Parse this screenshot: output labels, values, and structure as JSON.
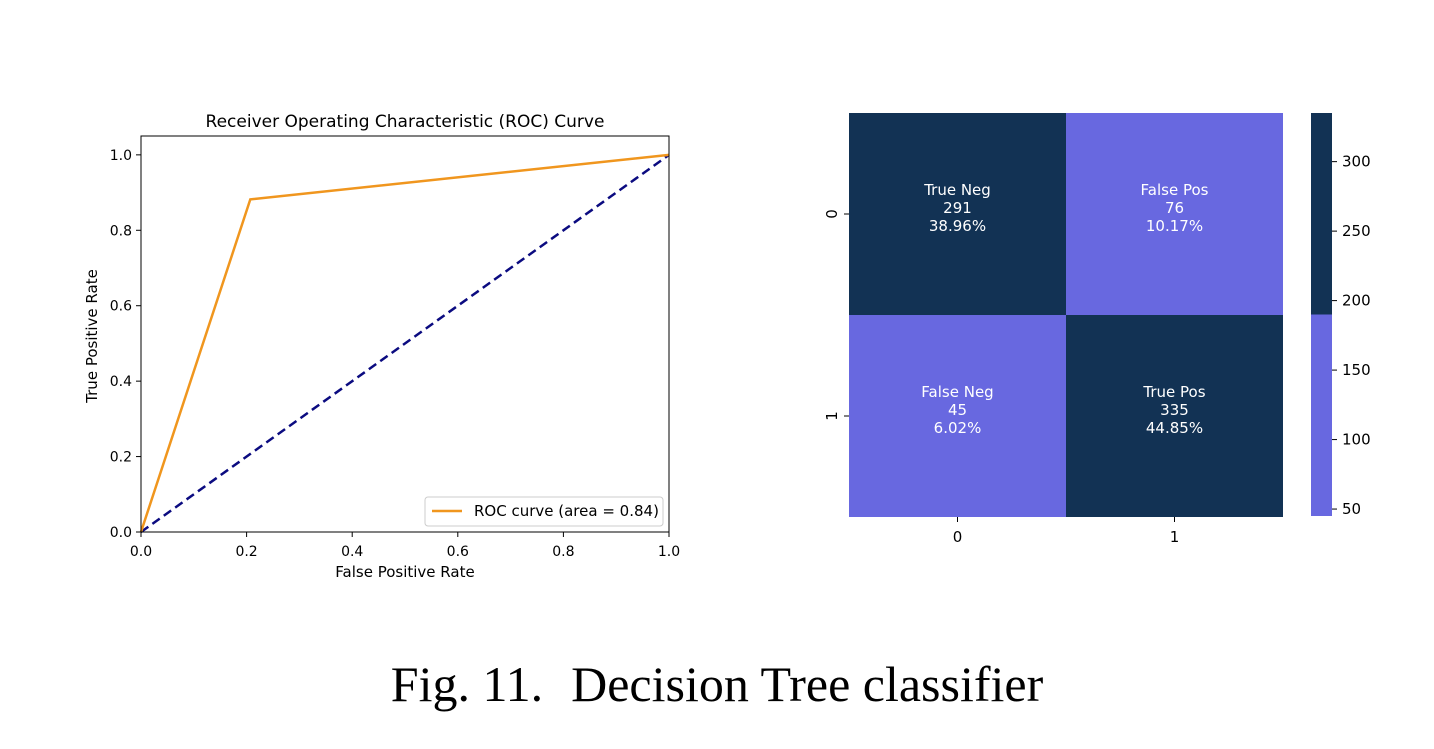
{
  "caption": {
    "label": "Fig. 11.",
    "text": "Decision Tree classifier"
  },
  "chart_data": [
    {
      "type": "line",
      "title": "Receiver Operating Characteristic (ROC) Curve",
      "xlabel": "False Positive Rate",
      "ylabel": "True Positive Rate",
      "xlim": [
        0,
        1
      ],
      "ylim": [
        0,
        1.05
      ],
      "xticks": [
        "0.0",
        "0.2",
        "0.4",
        "0.6",
        "0.8",
        "1.0"
      ],
      "yticks": [
        "0.0",
        "0.2",
        "0.4",
        "0.6",
        "0.8",
        "1.0"
      ],
      "legend_position": "lower-right",
      "series": [
        {
          "name": "ROC curve (area = 0.84)",
          "color": "#f0961e",
          "style": "solid",
          "x": [
            0,
            0.207,
            1
          ],
          "y": [
            0,
            0.882,
            1
          ]
        },
        {
          "color": "#0b0b80",
          "style": "dashed",
          "x": [
            0,
            1
          ],
          "y": [
            0,
            1
          ]
        }
      ]
    },
    {
      "type": "heatmap",
      "xticks": [
        "0",
        "1"
      ],
      "yticks": [
        "0",
        "1"
      ],
      "cells": [
        {
          "row": 0,
          "col": 0,
          "label": "True Neg",
          "count": "291",
          "percent": "38.96%",
          "value": 291
        },
        {
          "row": 0,
          "col": 1,
          "label": "False Pos",
          "count": "76",
          "percent": "10.17%",
          "value": 76
        },
        {
          "row": 1,
          "col": 0,
          "label": "False Neg",
          "count": "45",
          "percent": "6.02%",
          "value": 45
        },
        {
          "row": 1,
          "col": 1,
          "label": "True Pos",
          "count": "335",
          "percent": "44.85%",
          "value": 335
        }
      ],
      "colorbar": {
        "min": 45,
        "max": 335,
        "threshold": 190,
        "low_color": "#6868e0",
        "high_color": "#123254",
        "ticks": [
          "50",
          "100",
          "150",
          "200",
          "250",
          "300"
        ]
      }
    }
  ]
}
